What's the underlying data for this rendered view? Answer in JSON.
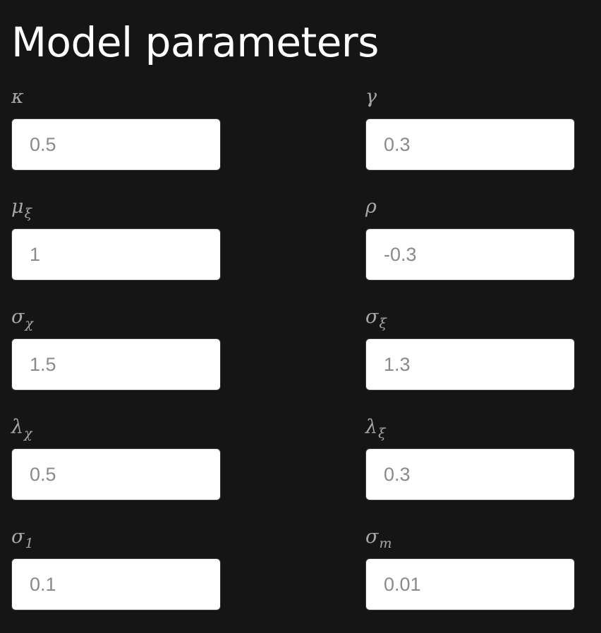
{
  "page": {
    "title": "Model parameters"
  },
  "params": [
    {
      "symbol": "κ",
      "sub": "",
      "value": "0.5"
    },
    {
      "symbol": "γ",
      "sub": "",
      "value": "0.3"
    },
    {
      "symbol": "μ",
      "sub": "ξ",
      "value": "1"
    },
    {
      "symbol": "ρ",
      "sub": "",
      "value": "-0.3"
    },
    {
      "symbol": "σ",
      "sub": "χ",
      "value": "1.5"
    },
    {
      "symbol": "σ",
      "sub": "ξ",
      "value": "1.3"
    },
    {
      "symbol": "λ",
      "sub": "χ",
      "value": "0.5"
    },
    {
      "symbol": "λ",
      "sub": "ξ",
      "value": "0.3"
    },
    {
      "symbol": "σ",
      "sub": "1",
      "value": "0.1"
    },
    {
      "symbol": "σ",
      "sub": "m",
      "value": "0.01"
    }
  ],
  "colors": {
    "background": "#151515",
    "title": "#ffffff",
    "label": "#a7a7a7",
    "input_bg": "#ffffff",
    "input_text": "#8a8a8a"
  }
}
